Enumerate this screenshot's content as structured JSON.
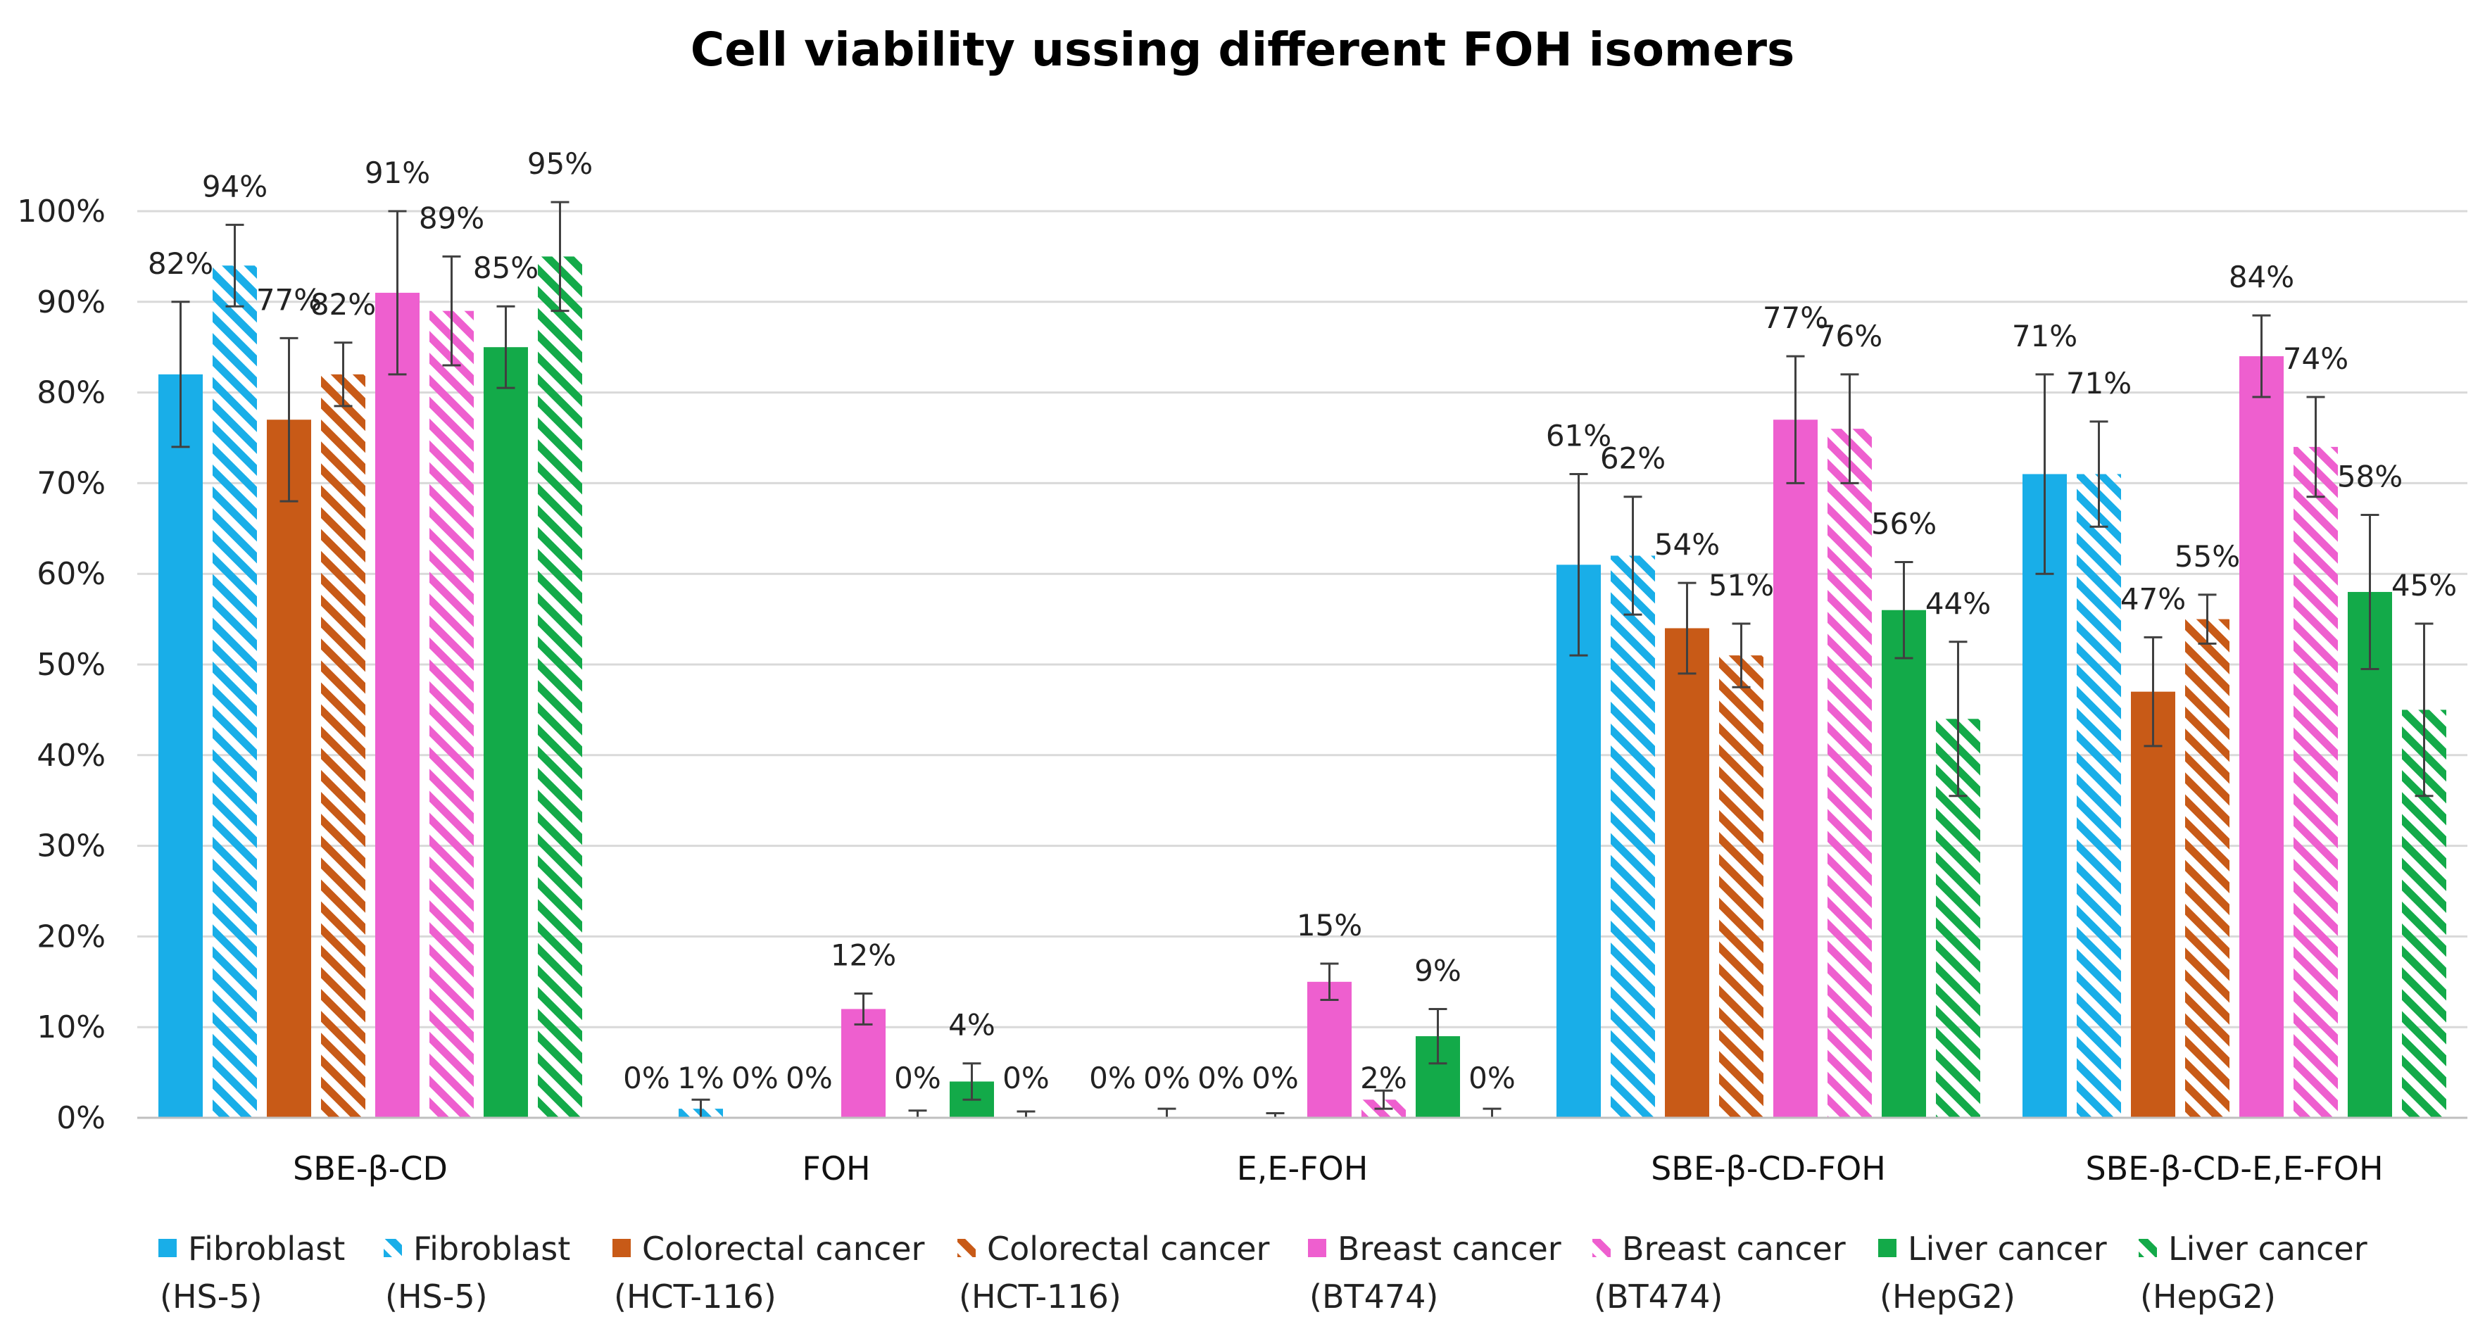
{
  "chart_data": {
    "type": "bar",
    "title": "Cell viability ussing different FOH isomers",
    "xlabel": "",
    "ylabel": "",
    "ylim": [
      0,
      100
    ],
    "yticks": [
      "0%",
      "10%",
      "20%",
      "30%",
      "40%",
      "50%",
      "60%",
      "70%",
      "80%",
      "90%",
      "100%"
    ],
    "grid": true,
    "legend_position": "bottom",
    "categories": [
      "SBE-β-CD",
      "FOH",
      "E,E-FOH",
      "SBE-β-CD-FOH",
      "SBE-β-CD-E,E-FOH"
    ],
    "series": [
      {
        "name": "Fibroblast",
        "sub": "(HS-5)",
        "color": "#19aee8",
        "pattern": "solid",
        "values": [
          82,
          0,
          0,
          61,
          71
        ],
        "labels": [
          "82%",
          "0%",
          "0%",
          "61%",
          "71%"
        ],
        "errors": [
          8,
          0,
          0,
          10,
          11
        ]
      },
      {
        "name": "Fibroblast",
        "sub": "(HS-5)",
        "color": "#19aee8",
        "pattern": "hatched",
        "values": [
          94,
          1,
          0,
          62,
          71
        ],
        "labels": [
          "94%",
          "1%",
          "0%",
          "62%",
          "71%"
        ],
        "errors": [
          4.5,
          1,
          1,
          6.5,
          5.8
        ]
      },
      {
        "name": "Colorectal cancer",
        "sub": "(HCT-116)",
        "color": "#c85a17",
        "pattern": "solid",
        "values": [
          77,
          0,
          0,
          54,
          47
        ],
        "labels": [
          "77%",
          "0%",
          "0%",
          "54%",
          "47%"
        ],
        "errors": [
          9,
          0,
          0,
          5,
          6
        ]
      },
      {
        "name": "Colorectal cancer",
        "sub": "(HCT-116)",
        "color": "#c85a17",
        "pattern": "hatched",
        "values": [
          82,
          0,
          0,
          51,
          55
        ],
        "labels": [
          "82%",
          "0%",
          "0%",
          "51%",
          "55%"
        ],
        "errors": [
          3.5,
          0,
          0.5,
          3.5,
          2.7
        ]
      },
      {
        "name": "Breast cancer",
        "sub": "(BT474)",
        "color": "#ee5fcf",
        "pattern": "solid",
        "values": [
          91,
          12,
          15,
          77,
          84
        ],
        "labels": [
          "91%",
          "12%",
          "15%",
          "77%",
          "84%"
        ],
        "errors": [
          9,
          1.7,
          2,
          7,
          4.5
        ]
      },
      {
        "name": "Breast cancer",
        "sub": "(BT474)",
        "color": "#ee5fcf",
        "pattern": "hatched",
        "values": [
          89,
          0,
          2,
          76,
          74
        ],
        "labels": [
          "89%",
          "0%",
          "2%",
          "76%",
          "74%"
        ],
        "errors": [
          6,
          0.8,
          1,
          6,
          5.5
        ]
      },
      {
        "name": "Liver cancer",
        "sub": "(HepG2)",
        "color": "#13aa49",
        "pattern": "solid",
        "values": [
          85,
          4,
          9,
          56,
          58
        ],
        "labels": [
          "85%",
          "4%",
          "9%",
          "56%",
          "58%"
        ],
        "errors": [
          4.5,
          2,
          3,
          5.3,
          8.5
        ]
      },
      {
        "name": "Liver cancer",
        "sub": "(HepG2)",
        "color": "#13aa49",
        "pattern": "hatched",
        "values": [
          95,
          0,
          0,
          44,
          45
        ],
        "labels": [
          "95%",
          "0%",
          "0%",
          "44%",
          "45%"
        ],
        "errors": [
          6,
          0.7,
          1,
          8.5,
          9.5
        ]
      }
    ]
  }
}
